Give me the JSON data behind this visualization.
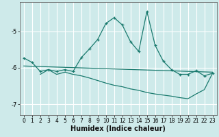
{
  "xlabel": "Humidex (Indice chaleur)",
  "xlim": [
    -0.5,
    23.5
  ],
  "ylim": [
    -7.3,
    -4.2
  ],
  "yticks": [
    -7,
    -6,
    -5
  ],
  "xticks": [
    0,
    1,
    2,
    3,
    4,
    5,
    6,
    7,
    8,
    9,
    10,
    11,
    12,
    13,
    14,
    15,
    16,
    17,
    18,
    19,
    20,
    21,
    22,
    23
  ],
  "bg_color": "#ceeaea",
  "grid_color": "#b8d8d8",
  "line_color": "#1a7a6e",
  "line2_x": [
    0,
    1,
    2,
    3,
    4,
    5,
    6,
    7,
    8,
    9,
    10,
    11,
    12,
    13,
    14,
    15,
    16,
    17,
    18,
    19,
    20,
    21,
    22,
    23
  ],
  "line2_y": [
    -5.73,
    -5.85,
    -6.1,
    -6.05,
    -6.1,
    -6.05,
    -6.1,
    -5.72,
    -5.48,
    -5.22,
    -4.78,
    -4.62,
    -4.82,
    -5.28,
    -5.55,
    -4.45,
    -5.38,
    -5.82,
    -6.05,
    -6.18,
    -6.18,
    -6.08,
    -6.22,
    -6.15
  ],
  "line1_x": [
    0,
    23
  ],
  "line1_y": [
    -5.95,
    -6.12
  ],
  "line3_x": [
    2,
    3,
    4,
    5,
    6,
    7,
    8,
    9,
    10,
    11,
    12,
    13,
    14,
    15,
    16,
    17,
    18,
    19,
    20,
    21,
    22,
    23
  ],
  "line3_y": [
    -6.18,
    -6.05,
    -6.18,
    -6.12,
    -6.18,
    -6.22,
    -6.28,
    -6.35,
    -6.42,
    -6.48,
    -6.52,
    -6.58,
    -6.62,
    -6.68,
    -6.72,
    -6.75,
    -6.78,
    -6.82,
    -6.85,
    -6.72,
    -6.6,
    -6.15
  ]
}
